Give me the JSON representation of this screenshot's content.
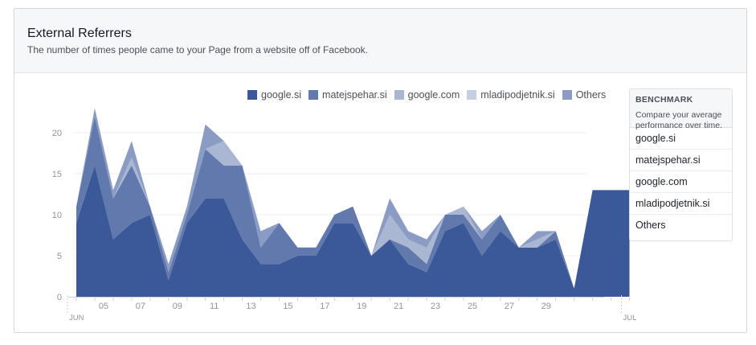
{
  "header": {
    "title": "External Referrers",
    "subtitle": "The number of times people came to your Page from a website off of Facebook."
  },
  "benchmark": {
    "title": "BENCHMARK",
    "description": "Compare your average performance over time.",
    "items": [
      "google.si",
      "matejspehar.si",
      "google.com",
      "mladipodjetnik.si",
      "Others"
    ]
  },
  "chart_data": {
    "type": "area",
    "stacked": true,
    "legend_position": "top",
    "grid": true,
    "x": [
      "Jun 4",
      "Jun 5",
      "Jun 6",
      "Jun 7",
      "Jun 8",
      "Jun 9",
      "Jun 10",
      "Jun 11",
      "Jun 12",
      "Jun 13",
      "Jun 14",
      "Jun 15",
      "Jun 16",
      "Jun 17",
      "Jun 18",
      "Jun 19",
      "Jun 20",
      "Jun 21",
      "Jun 22",
      "Jun 23",
      "Jun 24",
      "Jun 25",
      "Jun 26",
      "Jun 27",
      "Jun 28",
      "Jun 29",
      "Jun 30",
      "Jun 31",
      "Jul 1",
      "Jul 2",
      "Jul 3"
    ],
    "series": [
      {
        "name": "google.si",
        "color": "#3b5998",
        "values": [
          9,
          16,
          7,
          9,
          10,
          2,
          9,
          12,
          12,
          7,
          4,
          4,
          5,
          5,
          9,
          9,
          5,
          7,
          4,
          3,
          8,
          9,
          5,
          8,
          6,
          6,
          7,
          1,
          13,
          13,
          13
        ]
      },
      {
        "name": "matejspehar.si",
        "color": "#6179ad",
        "values": [
          2,
          6,
          5,
          7,
          1,
          1,
          1,
          6,
          4,
          9,
          2,
          5,
          1,
          1,
          1,
          2,
          0,
          0,
          2,
          1,
          2,
          1,
          2,
          2,
          0,
          0,
          1,
          0,
          0,
          0,
          0
        ]
      },
      {
        "name": "google.com",
        "color": "#aab7d2",
        "values": [
          0,
          0,
          0,
          1,
          0,
          0,
          0,
          0,
          3,
          0,
          0,
          0,
          0,
          0,
          0,
          0,
          0,
          3,
          1,
          2,
          0,
          1,
          0,
          0,
          0,
          1,
          0,
          0,
          0,
          0,
          0
        ]
      },
      {
        "name": "mladipodjetnik.si",
        "color": "#c6cfe2",
        "values": [
          0,
          0,
          0,
          0,
          0,
          0,
          0,
          0,
          0,
          0,
          0,
          0,
          0,
          0,
          0,
          0,
          0,
          0,
          0,
          0,
          0,
          0,
          0,
          0,
          0,
          0,
          0,
          0,
          0,
          0,
          0
        ]
      },
      {
        "name": "Others",
        "color": "#8a9cc4",
        "values": [
          0,
          1,
          1,
          2,
          0,
          1,
          1,
          3,
          0,
          0,
          2,
          0,
          0,
          0,
          0,
          0,
          0,
          2,
          1,
          1,
          0,
          0,
          1,
          0,
          0,
          1,
          0,
          0,
          0,
          0,
          0
        ]
      }
    ],
    "ylim": [
      0,
      23
    ],
    "yticks": [
      0,
      5,
      10,
      15,
      20
    ],
    "xtick_labels": [
      "05",
      "07",
      "09",
      "11",
      "13",
      "15",
      "17",
      "19",
      "21",
      "23",
      "25",
      "27",
      "29"
    ],
    "xtick_label_positions": [
      "Jun 5",
      "Jun 7",
      "Jun 9",
      "Jun 11",
      "Jun 13",
      "Jun 15",
      "Jun 17",
      "Jun 19",
      "Jun 21",
      "Jun 23",
      "Jun 25",
      "Jun 27",
      "Jun 29"
    ],
    "month_markers": [
      {
        "label": "JUN",
        "at": "Jun 4"
      },
      {
        "label": "JUL",
        "at": "Jul 3"
      }
    ]
  }
}
